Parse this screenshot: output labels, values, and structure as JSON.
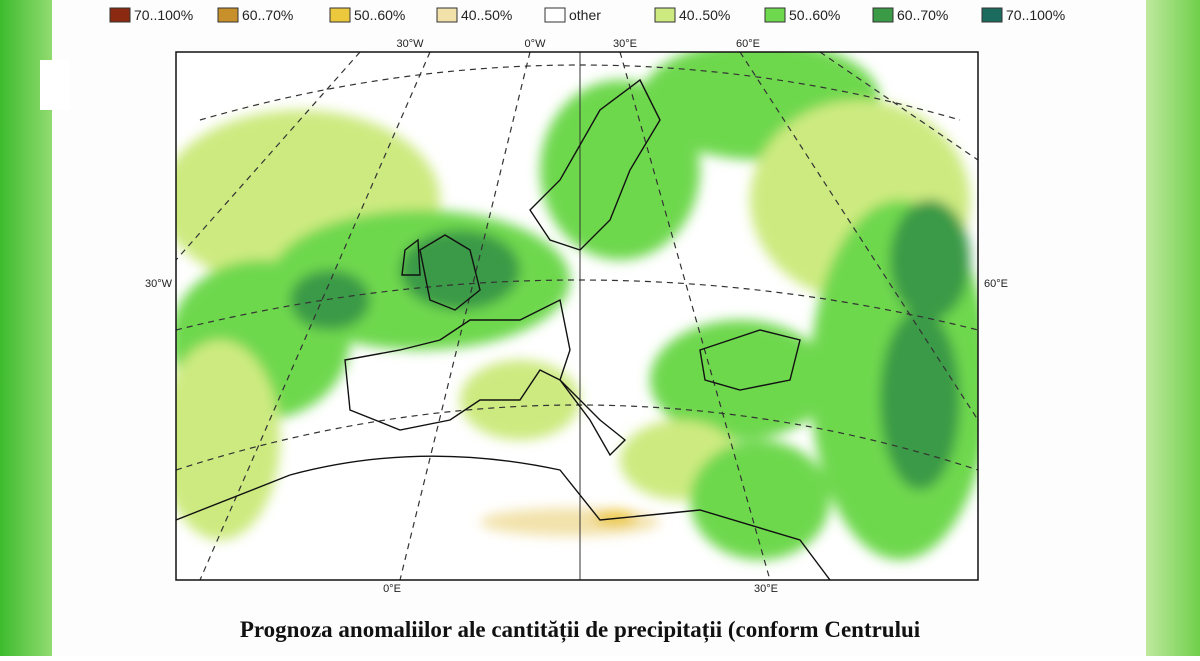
{
  "legend": [
    {
      "label": "70..100%",
      "color": "#8b2a10"
    },
    {
      "label": "60..70%",
      "color": "#c8902a"
    },
    {
      "label": "50..60%",
      "color": "#ecc83c"
    },
    {
      "label": "40..50%",
      "color": "#f2e2aa"
    },
    {
      "label": "other",
      "color": "#ffffff"
    },
    {
      "label": "40..50%",
      "color": "#cdea80"
    },
    {
      "label": "50..60%",
      "color": "#6ed84e"
    },
    {
      "label": "60..70%",
      "color": "#3a9a46"
    },
    {
      "label": "70..100%",
      "color": "#1b6b5e"
    }
  ],
  "map": {
    "top_labels": [
      "30°W",
      "0°W",
      "30°E",
      "60°E"
    ],
    "left_label": "30°W",
    "right_label": "60°E",
    "bottom_labels": [
      "0°E",
      "30°E"
    ]
  },
  "caption": "Prognoza anomaliilor ale cantității de precipitații (conform Centrului"
}
